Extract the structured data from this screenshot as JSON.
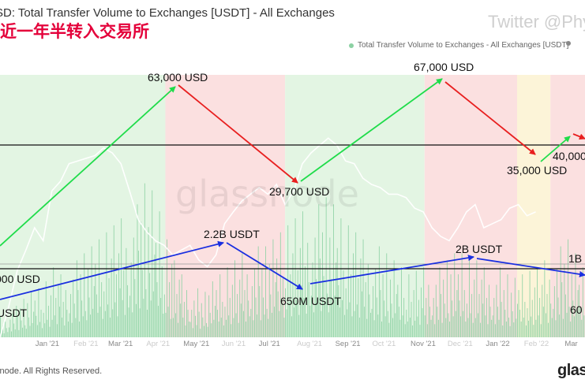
{
  "header": {
    "title": "SD: Total Transfer Volume to Exchanges [USDT] - All Exchanges",
    "subtitle_cn": "近一年半转入交易所",
    "twitter_handle": "Twitter @Phy"
  },
  "legend": {
    "series_label": "Total Transfer Volume to Exchanges - All Exchanges [USDT]"
  },
  "footer": {
    "copyright": "snode. All Rights Reserved.",
    "brand": "glass"
  },
  "watermark": "glassnode",
  "colors": {
    "bar": "#8cd1a3",
    "bg_green": "#e3f5e3",
    "bg_red": "#fbe0e0",
    "bg_yellow": "#fcf4d8",
    "up_arrow": "#1fdc4a",
    "down_arrow": "#e81f1f",
    "volume_up_arrow": "#1a2fe0",
    "hline": "#111111",
    "price_line": "#ffffff"
  },
  "chart_data": {
    "type": "bar",
    "title": "Total Transfer Volume to Exchanges [USDT] - All Exchanges",
    "x_tick_labels": [
      "Jan '21",
      "Mar '21",
      "May '21",
      "Jul '21",
      "Sep '21",
      "Nov '21",
      "Jan '22",
      "Mar"
    ],
    "x_tick_labels_faint": [
      "Feb '21",
      "Apr '21",
      "Jun '21",
      "Aug '21",
      "Oct '21",
      "Dec '21",
      "Feb '22"
    ],
    "x_range": [
      "2020-12-01",
      "2022-03-20"
    ],
    "price_axis": "log",
    "price_range": [
      19000,
      100000
    ],
    "volume_range": [
      0,
      6000000000
    ],
    "series": [
      {
        "kind": "bars",
        "weekly_volume_usdt": [
          300000000.0,
          450000000.0,
          550000000.0,
          650000000.0,
          700000000.0,
          800000000.0,
          1000000000.0,
          900000000.0,
          1100000000.0,
          1200000000.0,
          1300000000.0,
          1400000000.0,
          1500000000.0,
          1600000000.0,
          1700000000.0,
          1900000000.0,
          2200000000.0,
          2100000000.0,
          1800000000.0,
          1400000000.0,
          1100000000.0,
          900000000.0,
          700000000.0,
          650000000.0,
          800000000.0,
          900000000.0,
          1000000000.0,
          1100000000.0,
          1200000000.0,
          1300000000.0,
          1300000000.0,
          1400000000.0,
          1500000000.0,
          1600000000.0,
          1700000000.0,
          1800000000.0,
          1900000000.0,
          2000000000.0,
          1900000000.0,
          1700000000.0,
          1600000000.0,
          1500000000.0,
          1400000000.0,
          1300000000.0,
          1200000000.0,
          1100000000.0,
          1000000000.0,
          900000000.0,
          950000000.0,
          1000000000.0,
          1000000000.0,
          1100000000.0,
          1200000000.0,
          1200000000.0,
          1100000000.0,
          1100000000.0,
          1000000000.0,
          1000000000.0,
          900000000.0,
          850000000.0,
          900000000.0,
          950000000.0,
          1000000000.0,
          1100000000.0,
          1300000000.0,
          1400000000.0,
          1200000000.0,
          1000000000.0,
          900000000.0,
          850000000.0
        ]
      },
      {
        "kind": "price_line",
        "weekly_price_usd": [
          19000,
          23000,
          29000,
          33000,
          38000,
          35000,
          48000,
          51000,
          57000,
          58000,
          59000,
          60000,
          63000,
          61000,
          57000,
          48000,
          40000,
          37000,
          35000,
          34000,
          32000,
          33000,
          34000,
          31000,
          29700,
          32000,
          39000,
          42000,
          45000,
          47000,
          49000,
          47000,
          50000,
          44000,
          48000,
          57000,
          61000,
          64000,
          67000,
          64000,
          58000,
          57000,
          52000,
          50000,
          49000,
          47000,
          47000,
          46000,
          43000,
          42000,
          38000,
          36000,
          35000,
          38000,
          42000,
          44000,
          38000,
          39000,
          40000,
          43000,
          44000,
          41000,
          42000
        ]
      }
    ],
    "annotations": [
      {
        "text": "63,000 USD"
      },
      {
        "text": "29,700 USD"
      },
      {
        "text": "67,000 USD"
      },
      {
        "text": "35,000 USD"
      },
      {
        "text": "40,000"
      },
      {
        "text": "2.2B USDT"
      },
      {
        "text": "650M USDT"
      },
      {
        "text": "2B USDT"
      },
      {
        "text": "1B"
      },
      {
        "text": "000 USD"
      },
      {
        "text": "USDT"
      },
      {
        "text": "60"
      }
    ]
  }
}
